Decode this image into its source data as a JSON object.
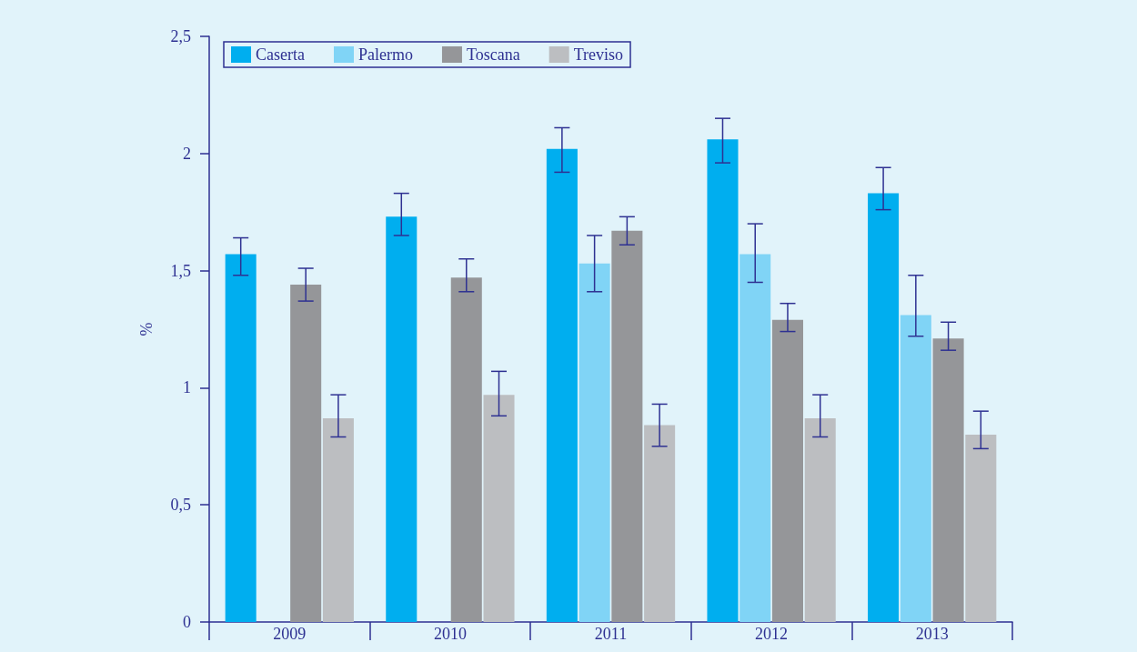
{
  "chart_data": {
    "type": "bar",
    "ylabel": "%",
    "categories": [
      "2009",
      "2010",
      "2011",
      "2012",
      "2013"
    ],
    "series": [
      {
        "name": "Caserta",
        "color": "#00aeef",
        "values": [
          1.57,
          1.73,
          2.02,
          2.06,
          1.83
        ],
        "errors": [
          [
            1.48,
            1.64
          ],
          [
            1.65,
            1.83
          ],
          [
            1.92,
            2.11
          ],
          [
            1.96,
            2.15
          ],
          [
            1.76,
            1.94
          ]
        ]
      },
      {
        "name": "Palermo",
        "color": "#80d4f6",
        "values": [
          null,
          null,
          1.53,
          1.57,
          1.31
        ],
        "errors": [
          null,
          null,
          [
            1.41,
            1.65
          ],
          [
            1.45,
            1.7
          ],
          [
            1.22,
            1.48
          ]
        ]
      },
      {
        "name": "Toscana",
        "color": "#959699",
        "values": [
          1.44,
          1.47,
          1.67,
          1.29,
          1.21
        ],
        "errors": [
          [
            1.37,
            1.51
          ],
          [
            1.41,
            1.55
          ],
          [
            1.61,
            1.73
          ],
          [
            1.24,
            1.36
          ],
          [
            1.16,
            1.28
          ]
        ]
      },
      {
        "name": "Treviso",
        "color": "#bcbec1",
        "values": [
          0.87,
          0.97,
          0.84,
          0.87,
          0.8
        ],
        "errors": [
          [
            0.79,
            0.97
          ],
          [
            0.88,
            1.07
          ],
          [
            0.75,
            0.93
          ],
          [
            0.79,
            0.97
          ],
          [
            0.74,
            0.9
          ]
        ]
      }
    ],
    "ylim": [
      0,
      2.5
    ],
    "yticks": [
      0,
      {
        "value": 0.5,
        "label": "0,5"
      },
      1,
      {
        "value": 1.5,
        "label": "1,5"
      },
      2,
      {
        "value": 2.5,
        "label": "2,5"
      }
    ],
    "grid": false,
    "legend": "top left"
  }
}
